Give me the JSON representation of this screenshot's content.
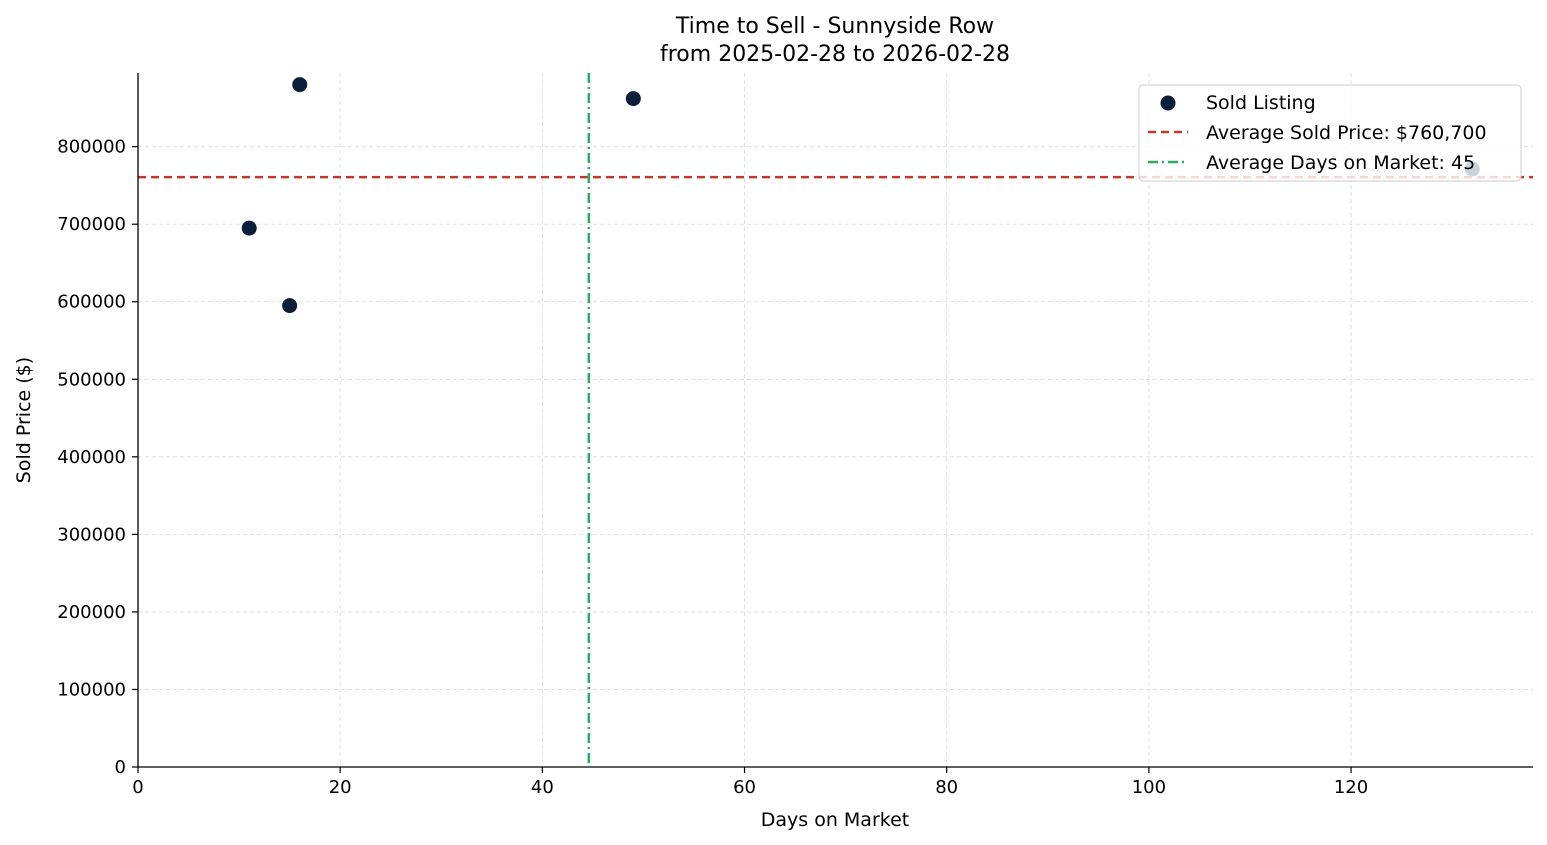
{
  "chart_data": {
    "type": "scatter",
    "title": "Time to Sell - Sunnyside Row",
    "subtitle": "from 2025-02-28 to 2026-02-28",
    "xlabel": "Days on Market",
    "ylabel": "Sold Price ($)",
    "xlim": [
      0,
      138
    ],
    "ylim": [
      0,
      895000
    ],
    "xticks": [
      0,
      20,
      40,
      60,
      80,
      100,
      120
    ],
    "yticks": [
      0,
      100000,
      200000,
      300000,
      400000,
      500000,
      600000,
      700000,
      800000
    ],
    "grid": true,
    "legend_position": "top-right",
    "series": [
      {
        "name": "Sold Listing",
        "color": "#0b1f3a",
        "points": [
          {
            "x": 11,
            "y": 695000
          },
          {
            "x": 15,
            "y": 595000
          },
          {
            "x": 16,
            "y": 880000
          },
          {
            "x": 49,
            "y": 862000
          },
          {
            "x": 132,
            "y": 771500
          }
        ]
      }
    ],
    "reference_lines": [
      {
        "orientation": "horizontal",
        "value": 760700,
        "label": "Average Sold Price: $760,700",
        "color": "#c0392b",
        "style": "dashed"
      },
      {
        "orientation": "vertical",
        "value": 44.6,
        "label": "Average Days on Market: 45",
        "color": "#27ae60",
        "style": "dashdot"
      }
    ]
  }
}
